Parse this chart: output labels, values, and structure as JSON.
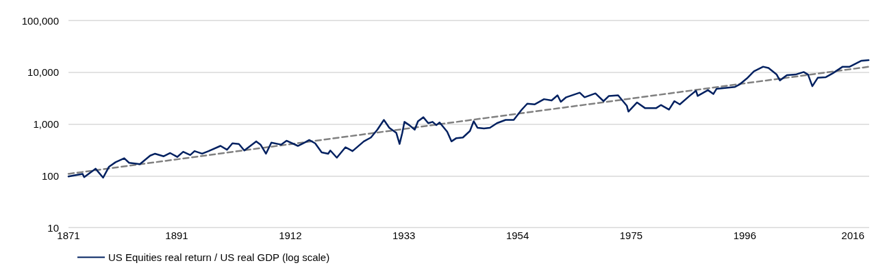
{
  "chart_data": {
    "type": "line",
    "log": "y",
    "grid": "y",
    "legend": "bottom left",
    "marker": "none",
    "xlim": [
      1871,
      2019
    ],
    "xticks": [
      1871,
      1891,
      1912,
      1933,
      1954,
      1975,
      1996,
      2016
    ],
    "ylim": [
      10,
      100000
    ],
    "yticks": [
      10,
      100,
      {
        "value": 1000,
        "label": "1,000"
      },
      {
        "value": 10000,
        "label": "10,000"
      },
      {
        "value": 100000,
        "label": "100,000"
      }
    ],
    "series": [
      {
        "name": "US Equities real return / US real GDP (log scale)",
        "color": "#002060",
        "line_style": "solid",
        "x": [
          1871.0,
          1873.6,
          1873.9,
          1876.0,
          1877.4,
          1878.5,
          1879.7,
          1881.3,
          1882.2,
          1884.2,
          1886.1,
          1887.0,
          1888.6,
          1889.8,
          1891.1,
          1892.2,
          1893.5,
          1894.3,
          1895.7,
          1896.9,
          1899.1,
          1900.3,
          1901.3,
          1902.5,
          1903.5,
          1905.7,
          1906.5,
          1907.5,
          1908.5,
          1910.3,
          1911.3,
          1913.4,
          1914.6,
          1915.5,
          1916.6,
          1917.8,
          1919.0,
          1919.4,
          1920.6,
          1922.2,
          1923.5,
          1925.6,
          1926.9,
          1928.1,
          1929.3,
          1930.3,
          1931.6,
          1932.2,
          1932.7,
          1933.1,
          1934.0,
          1935.0,
          1935.6,
          1936.6,
          1937.5,
          1938.3,
          1939.0,
          1939.6,
          1941.0,
          1941.8,
          1942.7,
          1943.9,
          1945.2,
          1945.9,
          1946.6,
          1947.8,
          1948.9,
          1950.2,
          1951.8,
          1953.3,
          1954.7,
          1955.8,
          1957.2,
          1958.9,
          1960.3,
          1961.4,
          1962.0,
          1963.0,
          1965.5,
          1966.4,
          1968.4,
          1969.9,
          1970.9,
          1972.6,
          1974.2,
          1974.5,
          1976.1,
          1977.6,
          1979.6,
          1980.5,
          1982.0,
          1983.0,
          1984.0,
          1985.8,
          1987.0,
          1987.3,
          1989.2,
          1990.2,
          1990.8,
          1994.2,
          1995.1,
          1996.4,
          1997.7,
          1999.4,
          2000.4,
          2001.9,
          2002.5,
          2003.8,
          2005.4,
          2006.9,
          2007.7,
          2008.5,
          2009.5,
          2011.0,
          2012.3,
          2014.1,
          2015.4,
          2017.5,
          2018.9
        ],
        "values": [
          97,
          109,
          94,
          137,
          92,
          150,
          183,
          218,
          178,
          168,
          245,
          267,
          238,
          275,
          231,
          291,
          252,
          300,
          267,
          300,
          378,
          318,
          424,
          412,
          308,
          462,
          400,
          267,
          436,
          400,
          476,
          378,
          436,
          490,
          424,
          283,
          267,
          308,
          224,
          356,
          300,
          462,
          549,
          777,
          1200,
          847,
          672,
          412,
          672,
          1100,
          951,
          777,
          1130,
          1350,
          1040,
          1100,
          951,
          1070,
          712,
          462,
          534,
          549,
          733,
          1130,
          847,
          823,
          847,
          1040,
          1200,
          1200,
          1850,
          2470,
          2400,
          3020,
          2850,
          3590,
          2690,
          3290,
          4030,
          3290,
          3910,
          2770,
          3490,
          3590,
          2260,
          1740,
          2610,
          2020,
          2020,
          2330,
          1900,
          2770,
          2400,
          3490,
          4390,
          3490,
          4520,
          3800,
          4790,
          5220,
          5860,
          7600,
          10400,
          12800,
          12100,
          9040,
          6970,
          8780,
          9040,
          10100,
          9040,
          5380,
          7820,
          8050,
          9580,
          12800,
          12800,
          16600,
          17100
        ]
      },
      {
        "color": "#808080",
        "line_style": "dashed",
        "x": [
          1871,
          2019
        ],
        "values": [
          109,
          12800
        ]
      }
    ]
  }
}
